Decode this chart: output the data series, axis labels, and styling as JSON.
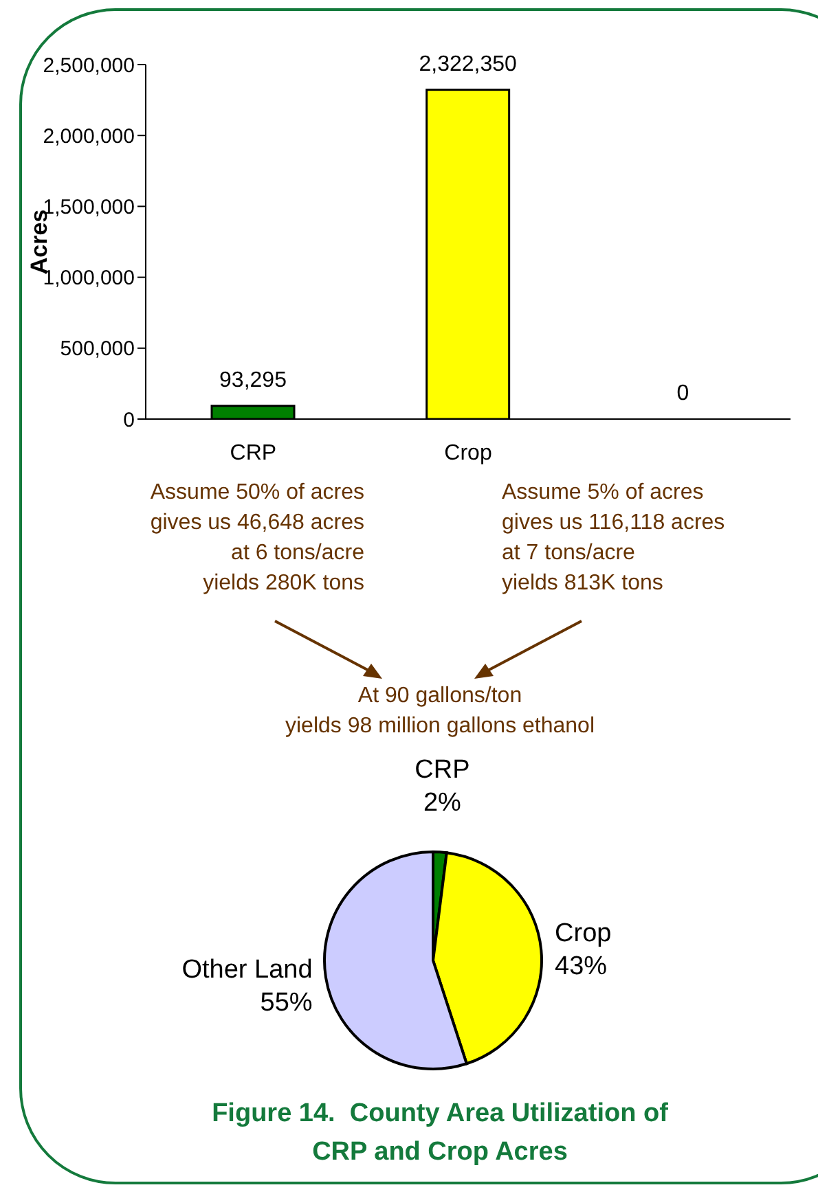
{
  "chart_data": [
    {
      "type": "bar",
      "ylabel": "Acres",
      "categories": [
        "CRP",
        "Crop",
        null
      ],
      "values": [
        93295,
        2322350,
        0
      ],
      "colors": [
        "#008000",
        "#ffff00",
        "#ccccff"
      ],
      "ylim": [
        0,
        2500000
      ],
      "yticks": [
        0,
        {
          "value": 500000,
          "label": "500,000"
        },
        {
          "value": 1000000,
          "label": "1,000,000"
        },
        {
          "value": 1500000,
          "label": "1,500,000"
        },
        {
          "value": 2000000,
          "label": "2,000,000"
        },
        {
          "value": 2500000,
          "label": "2,500,000"
        }
      ],
      "value_labels": [
        "93,295",
        "2,322,350",
        "0"
      ],
      "annotations": [
        "Assume 50% of acres\ngives us 46,648 acres\nat 6 tons/acre\nyields 280K tons",
        "Assume 5% of acres\ngives us 116,118 acres\nat 7 tons/acre\nyields 813K tons",
        "At 90 gallons/ton\nyields 98 million gallons ethanol"
      ]
    },
    {
      "type": "pie",
      "title": "Figure 14.  County Area Utilization of\nCRP and Crop Acres",
      "categories": [
        "CRP",
        "Crop",
        "Other Land"
      ],
      "values": [
        2,
        43,
        55
      ],
      "colors": [
        "#008000",
        "#ffff00",
        "#ccccff"
      ],
      "value_labels": [
        "2%",
        "43%",
        "55%"
      ]
    }
  ]
}
